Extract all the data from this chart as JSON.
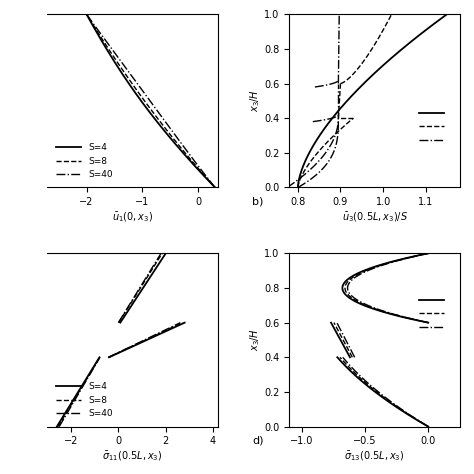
{
  "background_color": "#ffffff",
  "panels": {
    "a": {
      "xlabel": "$\\bar{u}_1(0,x_3)$",
      "xlim": [
        -2.7,
        0.35
      ],
      "ylim": [
        0,
        1
      ],
      "xticks": [
        -2,
        -1,
        0
      ],
      "yticks": []
    },
    "b": {
      "xlabel": "$\\bar{u}_3(0.5L,x_3)/S$",
      "ylabel": "$x_3/H$",
      "xlim": [
        0.78,
        1.18
      ],
      "ylim": [
        0,
        1
      ],
      "xticks": [
        0.8,
        0.9,
        1.0,
        1.1
      ],
      "yticks": [
        0,
        0.2,
        0.4,
        0.6,
        0.8,
        1.0
      ],
      "label": "b)"
    },
    "c": {
      "xlabel": "$\\bar{\\sigma}_{11}(0.5L,x_3)$",
      "xlim": [
        -3.0,
        4.2
      ],
      "ylim": [
        0,
        1
      ],
      "xticks": [
        -2,
        0,
        2,
        4
      ],
      "yticks": []
    },
    "d": {
      "xlabel": "$\\bar{\\sigma}_{13}(0.5L,x_3)$",
      "ylabel": "$x_3/H$",
      "xlim": [
        -1.1,
        0.25
      ],
      "ylim": [
        0,
        1
      ],
      "xticks": [
        -1,
        -0.5,
        0
      ],
      "yticks": [
        0,
        0.2,
        0.4,
        0.6,
        0.8,
        1.0
      ],
      "label": "d)"
    }
  },
  "legend": {
    "S4": "S=4",
    "S8": "S=8",
    "S40": "S=40"
  },
  "linestyles": {
    "S4": "-",
    "S8": "--",
    "S40": "-."
  },
  "linewidths": {
    "S4": 1.3,
    "S8": 1.0,
    "S40": 1.0
  }
}
